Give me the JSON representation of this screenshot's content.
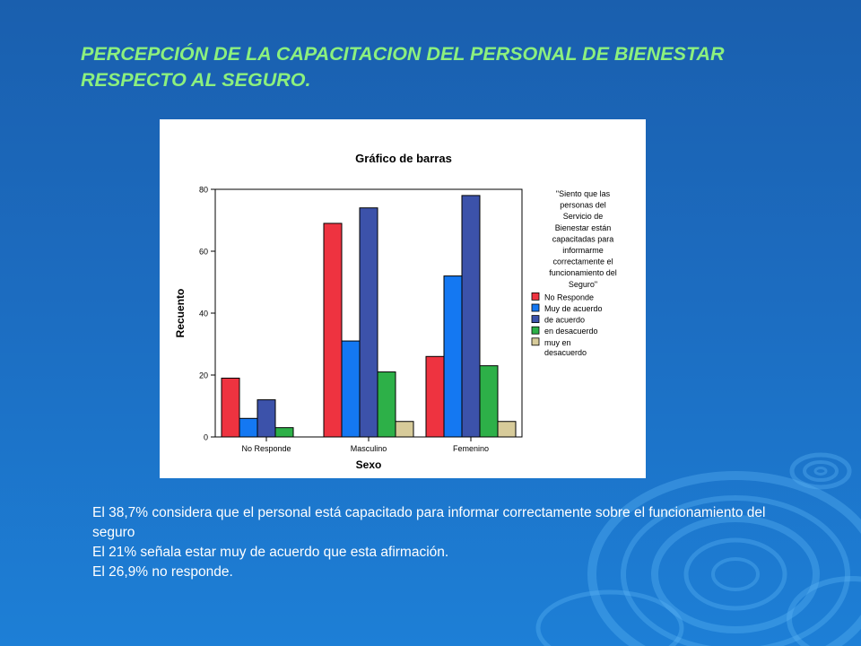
{
  "slide": {
    "title_lines": [
      "PERCEPCIÓN DE LA CAPACITACION DEL PERSONAL DE BIENESTAR",
      "RESPECTO AL SEGURO."
    ],
    "notes": [
      "El  38,7% considera que el personal está capacitado para informar correctamente sobre el funcionamiento del seguro",
      "El 21% señala estar muy de acuerdo que esta afirmación.",
      "El 26,9% no responde."
    ]
  },
  "colors": {
    "background": "#1c6cc0",
    "title": "#8cf07e",
    "notes": "#ffffff"
  },
  "chart_data": {
    "type": "bar",
    "title": "Gráfico de barras",
    "xlabel": "Sexo",
    "ylabel": "Recuento",
    "ylim": [
      0,
      80
    ],
    "yticks": [
      0,
      20,
      40,
      60,
      80
    ],
    "categories": [
      "No Responde",
      "Masculino",
      "Femenino"
    ],
    "legend_title_lines": [
      "\"Siento que las",
      "personas del",
      "Servicio de",
      "Bienestar están",
      "capacitadas para",
      "informarme",
      "correctamente el",
      "funcionamiento del",
      "Seguro\""
    ],
    "legend_position": "right",
    "series": [
      {
        "name": "No Responde",
        "color": "#ee3340",
        "values": [
          19,
          69,
          26
        ]
      },
      {
        "name": "Muy de acuerdo",
        "color": "#1478f2",
        "values": [
          6,
          31,
          52
        ]
      },
      {
        "name": "de acuerdo",
        "color": "#3c52aa",
        "values": [
          12,
          74,
          78
        ]
      },
      {
        "name": "en desacuerdo",
        "color": "#2db048",
        "values": [
          3,
          21,
          23
        ]
      },
      {
        "name": "muy en desacuerdo",
        "color": "#d7cb9a",
        "values": [
          0,
          5,
          5
        ]
      }
    ]
  }
}
